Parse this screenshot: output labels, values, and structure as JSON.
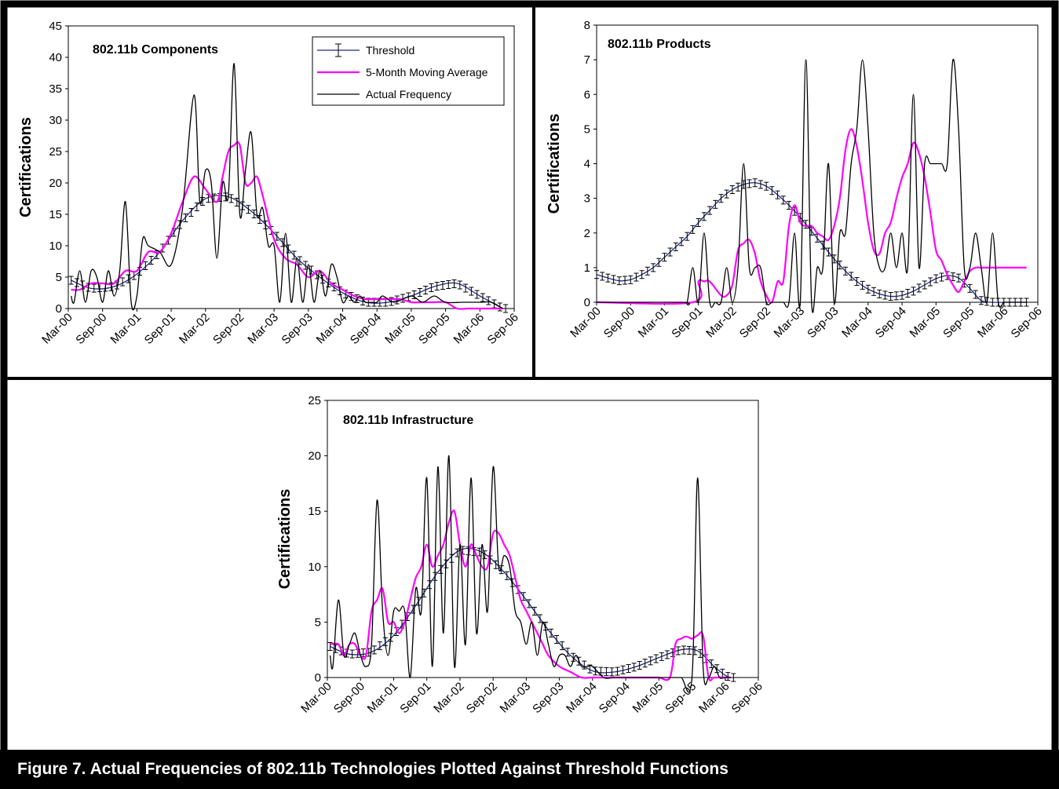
{
  "figure": {
    "caption": "Figure 7.  Actual Frequencies of 802.11b Technologies Plotted Against Threshold Functions",
    "legend": {
      "threshold": "Threshold",
      "moving_average": "5-Month Moving Average",
      "actual": "Actual Frequency"
    },
    "colors": {
      "threshold": "#1f2a80",
      "moving_average": "#ff00ff",
      "actual": "#000000"
    }
  },
  "chart_data": [
    {
      "type": "line",
      "title": "802.11b Components",
      "ylabel": "Certifications",
      "xlabel": "",
      "ylim": [
        0,
        45
      ],
      "yticks": [
        0,
        5,
        10,
        15,
        20,
        25,
        30,
        35,
        40,
        45
      ],
      "xticks": [
        "Mar-00",
        "Sep-00",
        "Mar-01",
        "Sep-01",
        "Mar-02",
        "Sep-02",
        "Mar-03",
        "Sep-03",
        "Mar-04",
        "Sep-04",
        "Mar-05",
        "Sep-05",
        "Mar-06",
        "Sep-06"
      ],
      "legend_position": "top-right",
      "series": [
        {
          "name": "Actual Frequency",
          "x": [
            0.5,
            1,
            2,
            3,
            4,
            5,
            6,
            7,
            8,
            9,
            10,
            11,
            12,
            13,
            14,
            16,
            18,
            20,
            22,
            23,
            24,
            25,
            26,
            27,
            28,
            29,
            30,
            31,
            32,
            33,
            34,
            35,
            36,
            37,
            38,
            39,
            40,
            41,
            42,
            43,
            44,
            45,
            46,
            47,
            48,
            49,
            50,
            51,
            52,
            53,
            54,
            55,
            57,
            60,
            62,
            64,
            66,
            69,
            72,
            74,
            76
          ],
          "y": [
            2,
            1,
            6,
            1,
            6,
            5,
            1,
            6,
            2,
            6,
            17,
            1,
            2,
            11,
            10,
            9,
            7,
            16,
            34,
            17,
            22,
            20,
            8,
            20,
            18,
            39,
            15,
            22,
            28,
            15,
            16,
            10,
            10,
            1,
            12,
            1,
            8,
            1,
            7,
            1,
            6,
            2,
            7,
            5,
            1,
            2,
            1,
            2,
            1,
            1,
            1,
            2,
            1,
            2,
            1,
            2,
            1,
            1,
            1,
            1,
            0
          ]
        },
        {
          "name": "5-Month Moving Average",
          "x": [
            0.5,
            2,
            4,
            6,
            8,
            10,
            12,
            14,
            16,
            18,
            20,
            22,
            24,
            26,
            27,
            28,
            29,
            30,
            31,
            32,
            33,
            34,
            36,
            38,
            40,
            42,
            44,
            46,
            48,
            50,
            52,
            54,
            56,
            58,
            60,
            62,
            64,
            66,
            68,
            70,
            72,
            74,
            76
          ],
          "y": [
            3,
            3,
            4,
            4,
            4,
            6,
            6,
            9,
            9,
            12,
            17,
            21,
            19,
            17,
            21,
            25,
            26,
            26,
            20,
            20,
            21,
            18,
            11,
            8,
            7,
            5,
            6,
            4,
            3,
            2,
            1.5,
            1.5,
            1.5,
            1.5,
            1,
            1,
            1,
            1,
            0,
            0,
            0,
            0,
            0
          ]
        },
        {
          "name": "Threshold",
          "x": [
            0.5,
            4,
            8,
            12,
            16,
            20,
            24,
            28,
            32,
            36,
            40,
            44,
            48,
            52,
            56,
            60,
            64,
            68,
            72,
            76
          ],
          "y": [
            4.5,
            3.2,
            3.5,
            5.5,
            9,
            14,
            17.5,
            17.8,
            15.5,
            12,
            8,
            5,
            2.5,
            1,
            1,
            2,
            3.5,
            4,
            2,
            0
          ]
        }
      ]
    },
    {
      "type": "line",
      "title": "802.11b Products",
      "ylabel": "Certifications",
      "xlabel": "",
      "ylim": [
        0,
        8
      ],
      "yticks": [
        0,
        1,
        2,
        3,
        4,
        5,
        6,
        7,
        8
      ],
      "xticks": [
        "Mar-00",
        "Sep-00",
        "Mar-01",
        "Sep-01",
        "Mar-02",
        "Sep-02",
        "Mar-03",
        "Sep-03",
        "Mar-04",
        "Sep-04",
        "Mar-05",
        "Sep-05",
        "Mar-06",
        "Sep-06"
      ],
      "legend_position": "none",
      "series": [
        {
          "name": "Actual Frequency",
          "x": [
            0,
            15,
            16,
            17,
            18,
            19,
            20,
            21,
            22,
            23,
            24,
            25,
            26,
            27,
            28,
            29,
            30,
            31,
            32,
            33,
            34,
            35,
            36,
            37,
            38,
            39,
            40,
            41,
            42,
            43,
            44,
            45,
            46,
            47,
            48,
            49,
            50,
            51,
            52,
            53,
            54,
            55,
            56,
            57,
            58,
            59,
            60,
            61,
            62,
            63,
            64,
            65,
            66,
            67,
            68,
            69,
            70,
            71,
            72,
            73,
            74,
            75,
            76
          ],
          "y": [
            0,
            0,
            0,
            1,
            0,
            2,
            0,
            0,
            0,
            1,
            0,
            1,
            4,
            1,
            1,
            1,
            0,
            0,
            0,
            0,
            0,
            2,
            0,
            7,
            0,
            1,
            1,
            4,
            0,
            2,
            2,
            4,
            5,
            7,
            5,
            2,
            1,
            1,
            2,
            1,
            2,
            1,
            6,
            1,
            4,
            4,
            4,
            4,
            4,
            7,
            5,
            1,
            1,
            2,
            1,
            0,
            2,
            0,
            0,
            0,
            0,
            0,
            0
          ]
        },
        {
          "name": "5-Month Moving Average",
          "x": [
            0,
            17,
            18,
            19,
            20,
            22,
            23,
            24,
            25,
            26,
            27,
            28,
            29,
            30,
            31,
            32,
            33,
            34,
            35,
            36,
            37,
            38,
            39,
            40,
            41,
            42,
            43,
            44,
            45,
            46,
            47,
            48,
            49,
            50,
            51,
            52,
            53,
            54,
            55,
            56,
            57,
            58,
            59,
            60,
            61,
            62,
            63,
            64,
            65,
            66,
            67,
            68,
            69,
            70,
            71,
            72,
            73,
            74,
            75,
            76
          ],
          "y": [
            0,
            0,
            0.6,
            0.6,
            0.6,
            0.2,
            0.2,
            0.5,
            1.5,
            1.7,
            1.8,
            1.4,
            0.6,
            0.2,
            0,
            0.6,
            0.6,
            2.2,
            2.8,
            2.3,
            2.2,
            2.2,
            2.0,
            1.9,
            1.8,
            2.2,
            3.0,
            4.4,
            5.0,
            4.5,
            3.5,
            2.3,
            1.5,
            1.4,
            2.0,
            2.3,
            3.0,
            3.6,
            4.0,
            4.6,
            4.3,
            3.6,
            2.6,
            1.5,
            1.2,
            0.8,
            0.5,
            0.3,
            0.6,
            0.9,
            1.0,
            1.0,
            1.0,
            1.0,
            1.0,
            1.0,
            1.0,
            1.0,
            1.0,
            1.0
          ]
        },
        {
          "name": "Threshold",
          "x": [
            0,
            2,
            4,
            6,
            8,
            10,
            12,
            14,
            16,
            18,
            20,
            22,
            24,
            26,
            28,
            30,
            32,
            34,
            36,
            38,
            40,
            42,
            44,
            46,
            48,
            50,
            52,
            54,
            56,
            58,
            60,
            62,
            64,
            66,
            68,
            70,
            72,
            74,
            76
          ],
          "y": [
            0.8,
            0.7,
            0.62,
            0.65,
            0.8,
            1.0,
            1.3,
            1.6,
            1.9,
            2.3,
            2.65,
            3.0,
            3.25,
            3.4,
            3.45,
            3.35,
            3.1,
            2.8,
            2.45,
            2.05,
            1.65,
            1.25,
            0.9,
            0.6,
            0.38,
            0.24,
            0.17,
            0.2,
            0.32,
            0.5,
            0.68,
            0.77,
            0.7,
            0.4,
            0.05,
            0,
            0,
            0,
            0
          ]
        }
      ]
    },
    {
      "type": "line",
      "title": "802.11b Infrastructure",
      "ylabel": "Certifications",
      "xlabel": "",
      "ylim": [
        0,
        25
      ],
      "yticks": [
        0,
        5,
        10,
        15,
        20,
        25
      ],
      "xticks": [
        "Mar-00",
        "Sep-00",
        "Mar-01",
        "Sep-01",
        "Mar-02",
        "Sep-02",
        "Mar-03",
        "Sep-03",
        "Mar-04",
        "Sep-04",
        "Mar-05",
        "Sep-05",
        "Mar-06",
        "Sep-06"
      ],
      "legend_position": "none",
      "series": [
        {
          "name": "Actual Frequency",
          "x": [
            0.5,
            1,
            2,
            3,
            4,
            5,
            6,
            7,
            8,
            9,
            10,
            11,
            12,
            13,
            14,
            15,
            16,
            17,
            18,
            19,
            20,
            21,
            22,
            23,
            24,
            25,
            26,
            27,
            28,
            29,
            30,
            31,
            32,
            33,
            34,
            35,
            36,
            37,
            38,
            39,
            40,
            41,
            42,
            43,
            44,
            45,
            46,
            47,
            48,
            50,
            52,
            54,
            56,
            58,
            60,
            62,
            64,
            66,
            67,
            68,
            69,
            70,
            71,
            72,
            73
          ],
          "y": [
            2,
            1,
            7,
            2,
            3,
            4,
            2,
            1,
            3,
            16,
            6,
            2,
            6,
            6,
            6,
            0,
            8,
            6,
            18,
            1,
            19,
            4,
            20,
            1,
            12,
            3,
            18,
            4,
            12,
            6,
            19,
            10,
            11,
            10,
            6,
            5,
            3,
            5,
            2,
            5,
            3,
            1,
            2,
            2,
            1,
            2,
            1,
            1,
            1,
            0,
            0,
            0,
            0,
            0,
            0,
            0,
            0,
            0,
            18,
            1,
            0,
            1,
            0,
            0,
            0
          ]
        },
        {
          "name": "5-Month Moving Average",
          "x": [
            0.5,
            2,
            3,
            4,
            5,
            6,
            7,
            8,
            9,
            10,
            11,
            12,
            13,
            14,
            15,
            16,
            17,
            18,
            19,
            20,
            21,
            22,
            23,
            24,
            25,
            26,
            27,
            28,
            29,
            30,
            31,
            32,
            33,
            34,
            35,
            36,
            37,
            38,
            39,
            40,
            42,
            44,
            46,
            48,
            50,
            52,
            54,
            56,
            58,
            60,
            62,
            63,
            64,
            65,
            66,
            67,
            68,
            69,
            70,
            72,
            73
          ],
          "y": [
            3,
            3,
            2,
            3,
            3,
            2,
            2,
            6,
            7,
            8,
            5,
            5,
            4,
            5,
            7,
            9,
            10,
            12,
            10,
            11,
            12,
            14,
            15,
            12,
            10,
            12,
            11,
            10,
            10,
            13,
            13,
            12,
            11,
            9,
            7,
            6,
            5,
            4,
            3,
            2,
            1,
            0.5,
            0,
            0,
            0,
            0,
            0,
            0,
            0,
            0,
            0,
            3,
            3.5,
            3.7,
            3.5,
            3.8,
            3.8,
            0,
            0,
            0,
            0
          ]
        },
        {
          "name": "Threshold",
          "x": [
            0.5,
            4,
            8,
            12,
            16,
            20,
            24,
            28,
            32,
            36,
            40,
            44,
            48,
            52,
            56,
            60,
            64,
            67,
            70,
            72,
            73
          ],
          "y": [
            2.8,
            2.1,
            2.3,
            3.8,
            6.5,
            9.5,
            11.5,
            11.3,
            9.5,
            7,
            4.3,
            2,
            0.6,
            0.5,
            1,
            1.8,
            2.5,
            2.4,
            1,
            0.2,
            0
          ]
        }
      ]
    }
  ]
}
